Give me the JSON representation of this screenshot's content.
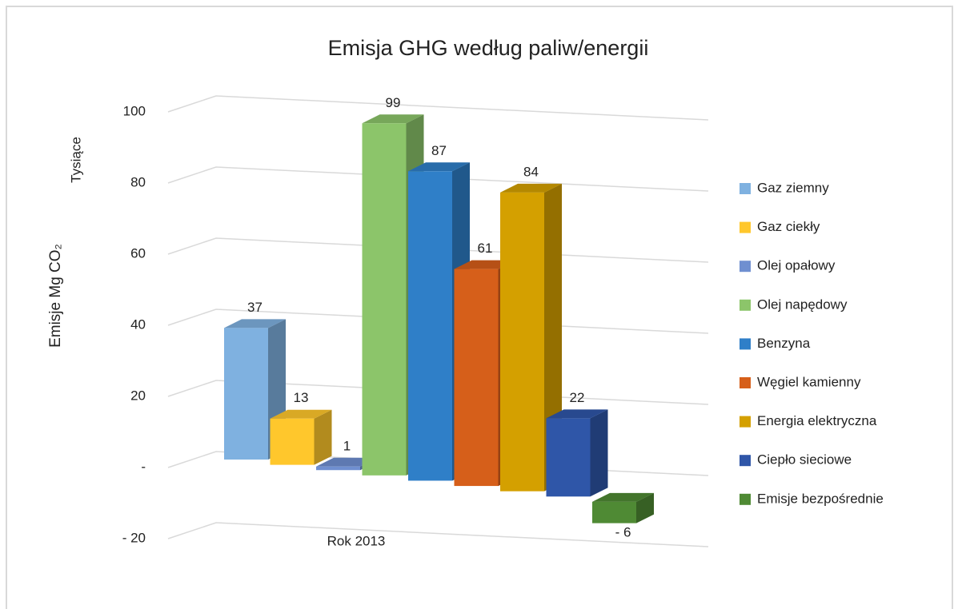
{
  "chart_data": {
    "type": "bar3d",
    "title": "Emisja GHG według paliw/energii",
    "ylabel": "Emisje Mg CO₂",
    "units_label": "Tysiące",
    "categories": [
      "Rok 2013"
    ],
    "ylim": [
      -20,
      100
    ],
    "yticks": [
      {
        "value": -20,
        "label": "- 20"
      },
      {
        "value": 0,
        "label": "-"
      },
      20,
      40,
      60,
      80,
      100
    ],
    "grid": true,
    "legend": "right",
    "series": [
      {
        "name": "Gaz ziemny",
        "color": "#7fb1e0",
        "values": [
          37
        ]
      },
      {
        "name": "Gaz ciekły",
        "color": "#ffc72c",
        "values": [
          13
        ]
      },
      {
        "name": "Olej opałowy",
        "color": "#6f8fd0",
        "values": [
          1
        ]
      },
      {
        "name": "Olej napędowy",
        "color": "#8cc56a",
        "values": [
          99
        ]
      },
      {
        "name": "Benzyna",
        "color": "#2f7fc8",
        "values": [
          87
        ]
      },
      {
        "name": "Węgiel kamienny",
        "color": "#d65f1a",
        "values": [
          61
        ]
      },
      {
        "name": "Energia elektryczna",
        "color": "#d4a000",
        "values": [
          84
        ]
      },
      {
        "name": "Ciepło sieciowe",
        "color": "#2f56a8",
        "values": [
          22
        ]
      },
      {
        "name": "Emisje bezpośrednie",
        "color": "#4f8a34",
        "values": [
          -6
        ],
        "value_labels": [
          "- 6"
        ]
      }
    ]
  }
}
